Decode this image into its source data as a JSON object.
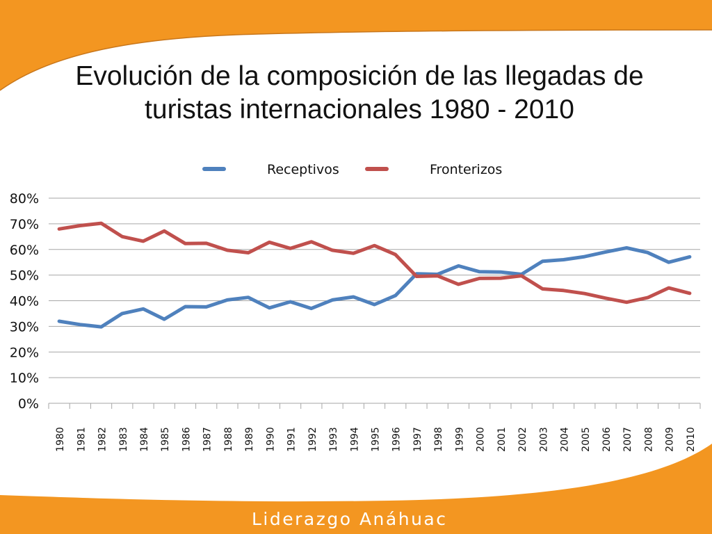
{
  "slide": {
    "title_line1": "Evolución de la composición de las llegadas de",
    "title_line2": "turistas internacionales 1980 - 2010",
    "footer_brand": "Liderazgo Anáhuac",
    "colors": {
      "orange": "#f39621",
      "blue": "#4f81bd",
      "red": "#c0504d",
      "grid": "#a6a6a6"
    }
  },
  "chart_data": {
    "type": "line",
    "title": "Evolución de la composición de las llegadas de turistas internacionales 1980 - 2010",
    "xlabel": "",
    "ylabel": "",
    "legend": "top",
    "grid": true,
    "ylim": [
      0,
      80
    ],
    "yticks": [
      "0%",
      "10%",
      "20%",
      "30%",
      "40%",
      "50%",
      "60%",
      "70%",
      "80%"
    ],
    "categories": [
      "1980",
      "1981",
      "1982",
      "1983",
      "1984",
      "1985",
      "1986",
      "1987",
      "1988",
      "1989",
      "1990",
      "1991",
      "1992",
      "1993",
      "1994",
      "1995",
      "1996",
      "1997",
      "1998",
      "1999",
      "2000",
      "2001",
      "2002",
      "2003",
      "2004",
      "2005",
      "2006",
      "2007",
      "2008",
      "2009",
      "2010"
    ],
    "series": [
      {
        "name": "Receptivos",
        "color": "#4f81bd",
        "values": [
          32,
          30.7,
          29.8,
          35,
          36.8,
          32.8,
          37.7,
          37.6,
          40.3,
          41.3,
          37.2,
          39.6,
          37,
          40.3,
          41.5,
          38.5,
          42,
          50.5,
          50.3,
          53.6,
          51.3,
          51.2,
          50.3,
          55.4,
          56,
          57.2,
          59,
          60.6,
          58.8,
          55,
          57.1
        ]
      },
      {
        "name": "Fronterizos",
        "color": "#c0504d",
        "values": [
          68,
          69.3,
          70.2,
          65,
          63.2,
          67.2,
          62.3,
          62.4,
          59.7,
          58.7,
          62.8,
          60.4,
          63,
          59.7,
          58.5,
          61.5,
          58,
          49.5,
          49.7,
          46.4,
          48.7,
          48.8,
          49.7,
          44.6,
          44,
          42.8,
          41,
          39.4,
          41.2,
          45,
          42.9
        ]
      }
    ]
  }
}
